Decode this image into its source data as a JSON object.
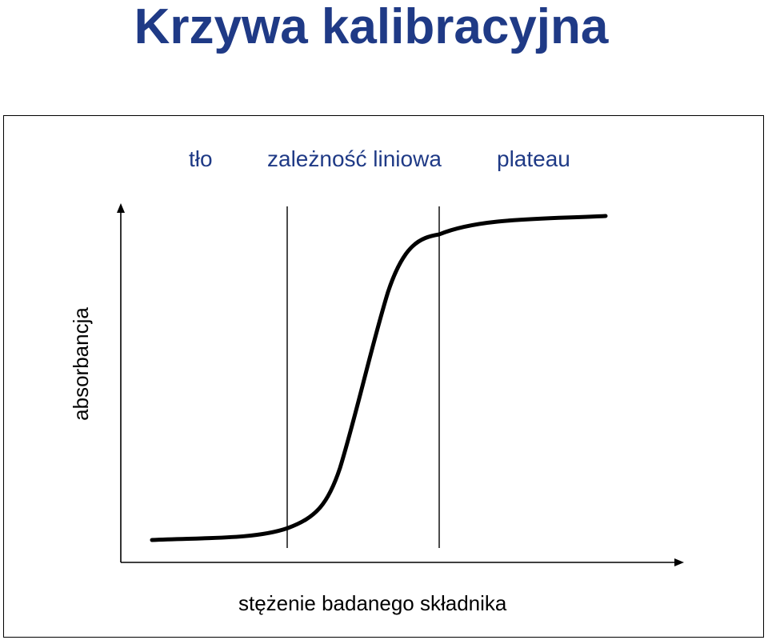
{
  "title": "Krzywa kalibracyjna",
  "colors": {
    "title": "#1f3a86",
    "region_labels": "#1f3a86",
    "lines": "#000000"
  },
  "chart_data": {
    "type": "line",
    "title": "",
    "xlabel": "stężenie badanego składnika",
    "ylabel": "absorbancja",
    "grid": false,
    "legend": "none",
    "axis_ticks": false,
    "region_labels": [
      {
        "text": "tło"
      },
      {
        "text": "zależność liniowa"
      },
      {
        "text": "plateau"
      }
    ],
    "boundaries_count": 2,
    "curve": "sigmoid",
    "series": [
      {
        "values_description_shape": "flat low baseline, steep linear rise, flat high plateau"
      }
    ]
  }
}
